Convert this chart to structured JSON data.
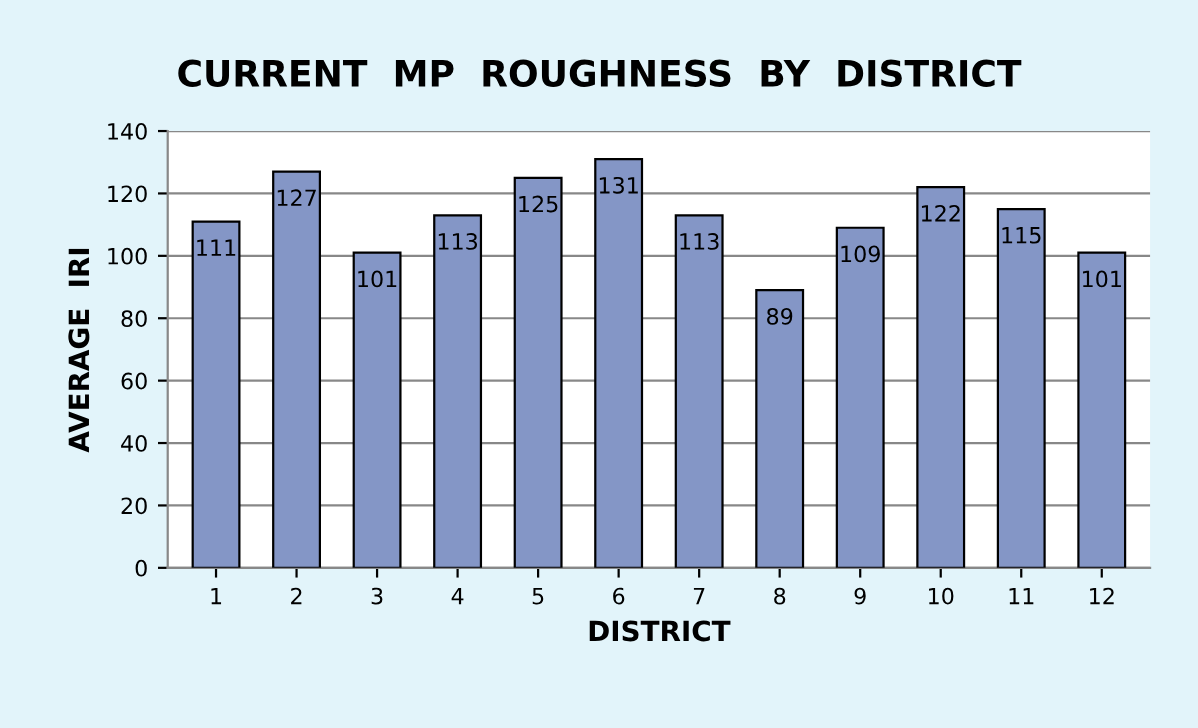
{
  "chart_data": {
    "type": "bar",
    "title": "CURRENT  MP  ROUGHNESS  BY  DISTRICT",
    "xlabel": "DISTRICT",
    "ylabel": "AVERAGE  IRI",
    "categories": [
      "1",
      "2",
      "3",
      "4",
      "5",
      "6",
      "7",
      "8",
      "9",
      "10",
      "11",
      "12"
    ],
    "values": [
      111,
      127,
      101,
      113,
      125,
      131,
      113,
      89,
      109,
      122,
      115,
      101
    ],
    "color": "#8496c6",
    "ylim": [
      0,
      140
    ],
    "yticks": [
      0,
      20,
      40,
      60,
      80,
      100,
      120,
      140
    ],
    "grid": "y",
    "data_labels": true,
    "legend": false
  }
}
